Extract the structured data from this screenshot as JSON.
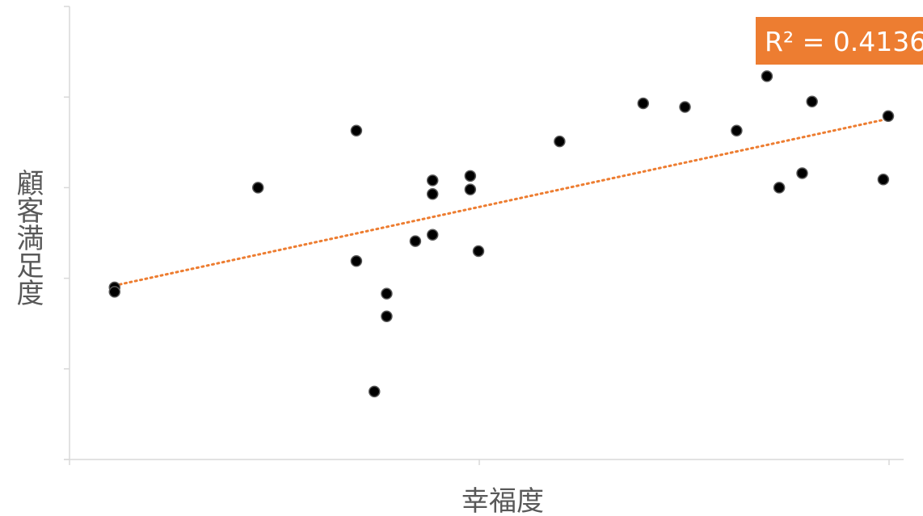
{
  "chart_data": {
    "type": "scatter",
    "xlabel": "幸福度",
    "ylabel": "顧客満足度",
    "xlim": [
      0,
      10
    ],
    "ylim": [
      0,
      5
    ],
    "grid": false,
    "x_ticks": [
      0,
      5,
      10
    ],
    "y_ticks": [
      0,
      1,
      2,
      3,
      4,
      5
    ],
    "tick_labels_shown": false,
    "series": [
      {
        "marker_color": "#000000",
        "points": [
          {
            "x": 0.55,
            "y": 1.9
          },
          {
            "x": 0.55,
            "y": 1.85
          },
          {
            "x": 2.3,
            "y": 3.0
          },
          {
            "x": 3.5,
            "y": 3.63
          },
          {
            "x": 3.5,
            "y": 2.19
          },
          {
            "x": 3.72,
            "y": 0.75
          },
          {
            "x": 3.87,
            "y": 1.83
          },
          {
            "x": 3.87,
            "y": 1.58
          },
          {
            "x": 4.22,
            "y": 2.41
          },
          {
            "x": 4.43,
            "y": 2.48
          },
          {
            "x": 4.43,
            "y": 2.93
          },
          {
            "x": 4.43,
            "y": 3.08
          },
          {
            "x": 4.89,
            "y": 2.98
          },
          {
            "x": 4.89,
            "y": 3.13
          },
          {
            "x": 4.99,
            "y": 2.3
          },
          {
            "x": 5.98,
            "y": 3.51
          },
          {
            "x": 7.0,
            "y": 3.93
          },
          {
            "x": 7.51,
            "y": 3.89
          },
          {
            "x": 8.14,
            "y": 3.63
          },
          {
            "x": 8.51,
            "y": 4.23
          },
          {
            "x": 8.66,
            "y": 3.0
          },
          {
            "x": 8.94,
            "y": 3.16
          },
          {
            "x": 9.06,
            "y": 3.95
          },
          {
            "x": 9.93,
            "y": 3.09
          },
          {
            "x": 9.99,
            "y": 3.79
          }
        ]
      }
    ],
    "trendline": {
      "type": "linear",
      "style": "dotted",
      "color": "#ED7D31",
      "x_range": [
        0.55,
        9.99
      ],
      "y_start": 1.92,
      "y_end": 3.76,
      "r_squared_label": "R² = 0.4136",
      "label_background": "#ED7D31",
      "label_text_color": "#FFFFFF"
    },
    "axis_color": "#D9D9D9",
    "axis_title_color": "#595959"
  }
}
